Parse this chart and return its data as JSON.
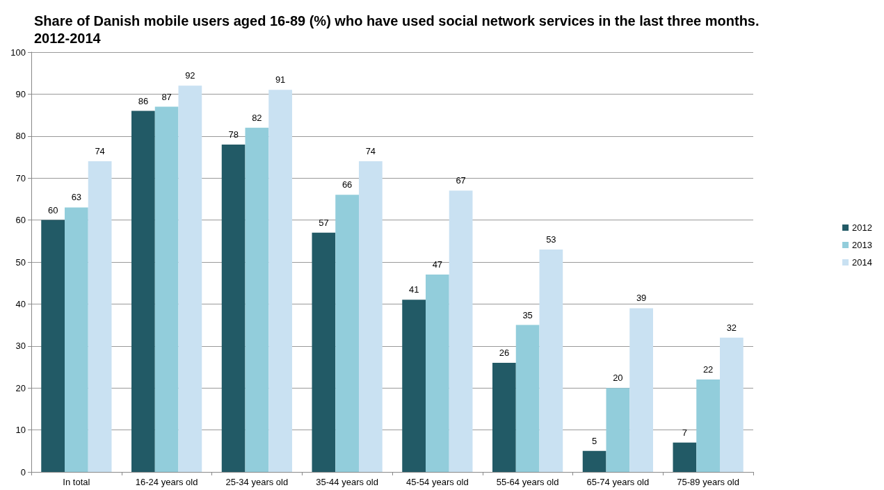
{
  "chart_data": {
    "type": "bar",
    "title": "Share of Danish mobile users aged 16-89 (%) who have used social network services in the last three months. 2012-2014",
    "categories": [
      "In total",
      "16-24 years old",
      "25-34 years old",
      "35-44 years old",
      "45-54 years old",
      "55-64 years old",
      "65-74 years old",
      "75-89 years old"
    ],
    "series": [
      {
        "name": "2012",
        "color": "#225a66",
        "values": [
          60,
          86,
          78,
          57,
          41,
          26,
          5,
          7
        ]
      },
      {
        "name": "2013",
        "color": "#92cddb",
        "values": [
          63,
          87,
          82,
          66,
          47,
          35,
          20,
          22
        ]
      },
      {
        "name": "2014",
        "color": "#c9e1f2",
        "values": [
          74,
          92,
          91,
          74,
          67,
          53,
          39,
          32
        ]
      }
    ],
    "ylim": [
      0,
      100
    ],
    "yticks": [
      0,
      10,
      20,
      30,
      40,
      50,
      60,
      70,
      80,
      90,
      100
    ],
    "grid": "y",
    "legend": "right",
    "data_labels": true
  }
}
